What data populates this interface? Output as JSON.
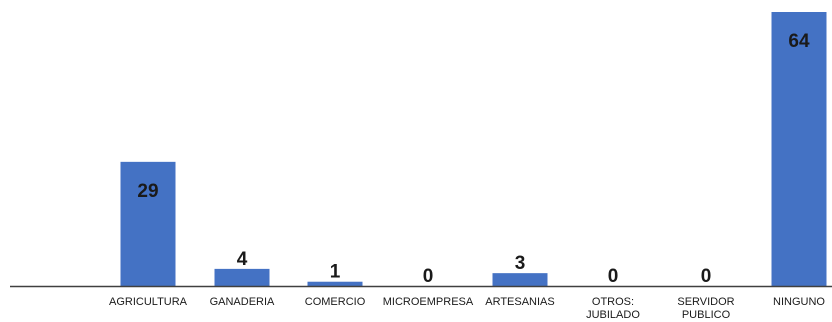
{
  "chart_data": {
    "type": "bar",
    "categories": [
      "AGRICULTURA",
      "GANADERIA",
      "COMERCIO",
      "MICROEMPRESA",
      "ARTESANIAS",
      "OTROS: JUBILADO",
      "SERVIDOR PUBLICO",
      "NINGUNO"
    ],
    "values": [
      29,
      4,
      1,
      0,
      3,
      0,
      0,
      64
    ],
    "data_labels": [
      "29",
      "4",
      "1",
      "0",
      "3",
      "0",
      "0",
      "64"
    ],
    "ylim": [
      0,
      64
    ],
    "grid": false,
    "legend": "none",
    "colors": {
      "bar": "#4472C4",
      "axis": "#404040",
      "text": "#1a1a1a"
    }
  }
}
